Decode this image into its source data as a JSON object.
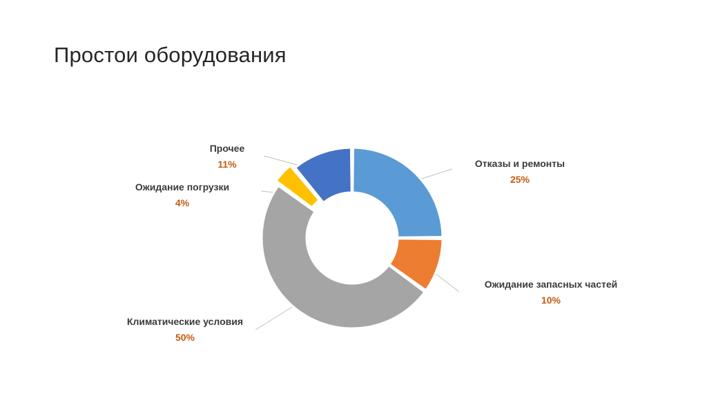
{
  "slide": {
    "title": "Простои оборудования"
  },
  "chart_data": {
    "type": "pie",
    "subtype": "doughnut",
    "title": "",
    "legend": "none",
    "slices": [
      {
        "label": "Отказы и ремонты",
        "value": 25,
        "value_label": "25%",
        "color": "#5b9bd5"
      },
      {
        "label": "Ожидание запасных частей",
        "value": 10,
        "value_label": "10%",
        "color": "#ed7d31"
      },
      {
        "label": "Климатические условия",
        "value": 50,
        "value_label": "50%",
        "color": "#a5a5a5"
      },
      {
        "label": "Ожидание погрузки",
        "value": 4,
        "value_label": "4%",
        "color": "#ffc000"
      },
      {
        "label": "Прочее",
        "value": 11,
        "value_label": "11%",
        "color": "#4472c4"
      }
    ],
    "value_label_color": "#c55a11",
    "leader_line_color": "#bfbfbf"
  }
}
